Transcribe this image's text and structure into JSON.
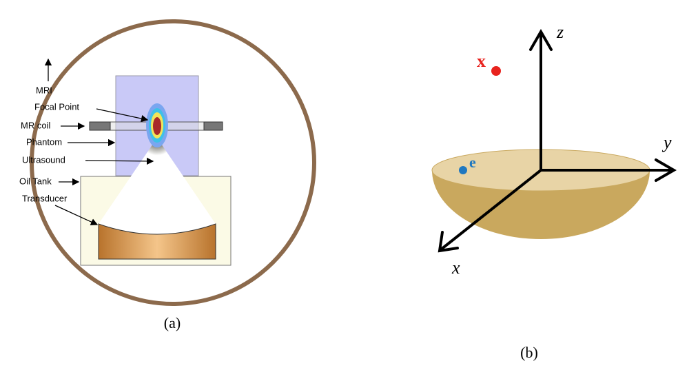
{
  "panel_a": {
    "labels": [
      "MRI",
      "Focal Point",
      "MR coil",
      "Phantom",
      "Ultrasound",
      "Oil Tank",
      "Transducer"
    ],
    "caption": "(a)"
  },
  "panel_b": {
    "axes": {
      "x": "x",
      "y": "y",
      "z": "z"
    },
    "points": [
      "x",
      "e"
    ],
    "caption": "(b)"
  }
}
